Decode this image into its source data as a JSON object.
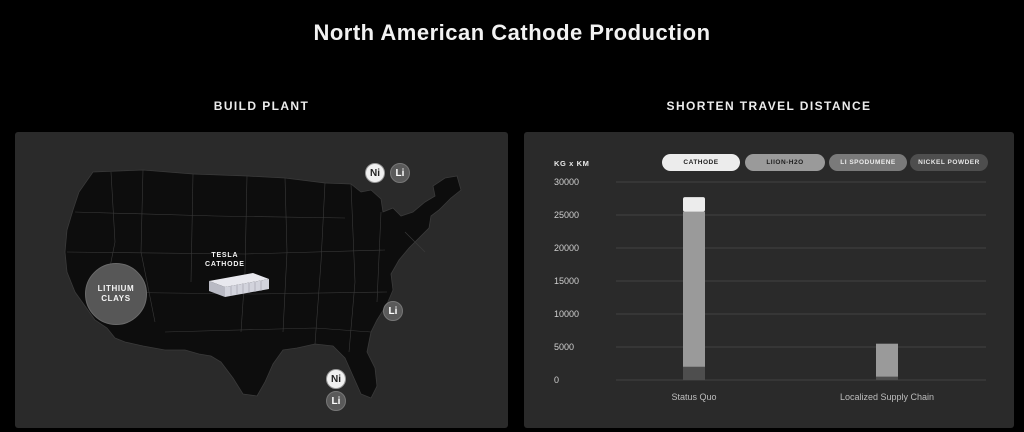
{
  "page": {
    "title": "North American Cathode Production"
  },
  "left_panel": {
    "heading": "BUILD PLANT",
    "plant_label_line1": "TESLA",
    "plant_label_line2": "CATHODE",
    "lithium_line1": "LITHIUM",
    "lithium_line2": "CLAYS",
    "markers": [
      {
        "text": "Ni",
        "kind": "Ni"
      },
      {
        "text": "Li",
        "kind": "Li"
      },
      {
        "text": "Li",
        "kind": "Li"
      },
      {
        "text": "Ni",
        "kind": "Ni"
      },
      {
        "text": "Li",
        "kind": "Li"
      }
    ]
  },
  "right_panel": {
    "heading": "SHORTEN TRAVEL DISTANCE"
  },
  "chart_data": {
    "type": "bar",
    "stacked": true,
    "ylabel": "KG x KM",
    "ylim": [
      0,
      30000
    ],
    "yticks": [
      "30000",
      "25000",
      "20000",
      "15000",
      "10000",
      "5000",
      "0"
    ],
    "categories": [
      "Status Quo",
      "Localized Supply Chain"
    ],
    "series": [
      {
        "name": "CATHODE",
        "color": "#ececec",
        "values": [
          2200,
          0
        ]
      },
      {
        "name": "LIION-H2O",
        "color": "#9a9a9a",
        "values": [
          23500,
          5000
        ]
      },
      {
        "name": "LI SPODUMENE",
        "color": "#7a7a7a",
        "values": [
          0,
          0
        ]
      },
      {
        "name": "NICKEL POWDER",
        "color": "#4e4e4e",
        "values": [
          2000,
          500
        ]
      }
    ],
    "legend_position": "top-right",
    "grid": true
  }
}
